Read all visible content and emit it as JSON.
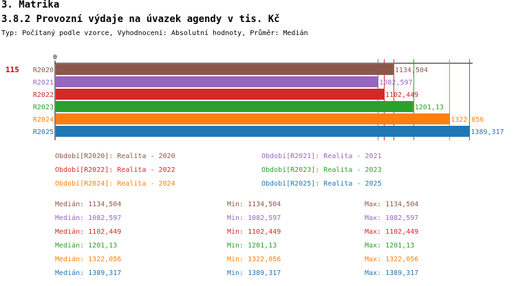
{
  "header": {
    "section": "3. Matrika",
    "title": "3.8.2 Provozní výdaje na úvazek agendy v tis. Kč",
    "subtitle": "Typ: Počítaný podle vzorce, Vyhodnocení: Absolutní hodnoty, Průměr: Medián"
  },
  "chart_data": {
    "type": "bar",
    "orientation": "horizontal",
    "row_marker": "115",
    "axis_zero_label": "0",
    "xlim": [
      0,
      1400
    ],
    "categories": [
      "R2020",
      "R2021",
      "R2022",
      "R2023",
      "R2024",
      "R2025"
    ],
    "values": [
      1134.504,
      1082.597,
      1102.449,
      1201.13,
      1322.056,
      1389.317
    ],
    "value_labels": [
      "1134,504",
      "1082,597",
      "1102,449",
      "1201,13",
      "1322,056",
      "1389,317"
    ],
    "colors": [
      "#8c564b",
      "#9467bd",
      "#d62728",
      "#2ca02c",
      "#ff7f0e",
      "#1f77b4"
    ],
    "reference_lines": true,
    "grid": false
  },
  "legend": [
    {
      "text": "Období[R2020]: Realita - 2020",
      "color": "#8c564b"
    },
    {
      "text": "Období[R2021]: Realita - 2021",
      "color": "#9467bd"
    },
    {
      "text": "Období[R2022]: Realita - 2022",
      "color": "#d62728"
    },
    {
      "text": "Období[R2023]: Realita - 2023",
      "color": "#2ca02c"
    },
    {
      "text": "Období[R2024]: Realita - 2024",
      "color": "#ff7f0e"
    },
    {
      "text": "Období[R2025]: Realita - 2025",
      "color": "#1f77b4"
    }
  ],
  "stats": [
    {
      "median": "Medián: 1134,504",
      "min": "Min: 1134,504",
      "max": "Max: 1134,504",
      "color": "#8c564b"
    },
    {
      "median": "Medián: 1082,597",
      "min": "Min: 1082,597",
      "max": "Max: 1082,597",
      "color": "#9467bd"
    },
    {
      "median": "Medián: 1102,449",
      "min": "Min: 1102,449",
      "max": "Max: 1102,449",
      "color": "#d62728"
    },
    {
      "median": "Medián: 1201,13",
      "min": "Min: 1201,13",
      "max": "Max: 1201,13",
      "color": "#2ca02c"
    },
    {
      "median": "Medián: 1322,056",
      "min": "Min: 1322,056",
      "max": "Max: 1322,056",
      "color": "#ff7f0e"
    },
    {
      "median": "Medián: 1389,317",
      "min": "Min: 1389,317",
      "max": "Max: 1389,317",
      "color": "#1f77b4"
    }
  ]
}
